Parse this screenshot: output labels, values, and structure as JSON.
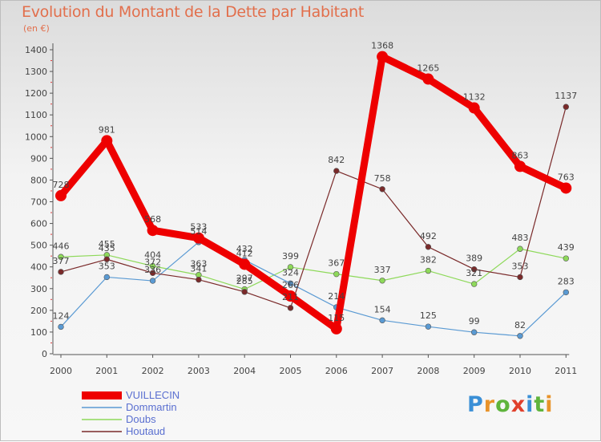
{
  "header": {
    "title": "Evolution du Montant de la Dette par Habitant",
    "subtitle": "(en €)"
  },
  "brand": {
    "letters": [
      {
        "ch": "P",
        "color": "#3a8fd6"
      },
      {
        "ch": "r",
        "color": "#e8932a"
      },
      {
        "ch": "o",
        "color": "#5fb43c"
      },
      {
        "ch": "x",
        "color": "#e0402c"
      },
      {
        "ch": "i",
        "color": "#3a8fd6"
      },
      {
        "ch": "t",
        "color": "#5fb43c"
      },
      {
        "ch": "i",
        "color": "#e8932a"
      }
    ]
  },
  "chart_data": {
    "type": "line",
    "x": [
      "2000",
      "2001",
      "2002",
      "2003",
      "2004",
      "2005",
      "2006",
      "2007",
      "2008",
      "2009",
      "2010",
      "2011"
    ],
    "ylim": [
      0,
      1400
    ],
    "yticks": [
      0,
      100,
      200,
      300,
      400,
      500,
      600,
      700,
      800,
      900,
      1000,
      1100,
      1200,
      1300,
      1400
    ],
    "grid": false,
    "legend_position": "bottom-left",
    "series": [
      {
        "name": "Doubs",
        "color": "#8ed95a",
        "width": 1.2,
        "values": [
          446,
          455,
          404,
          363,
          297,
          399,
          367,
          337,
          382,
          321,
          483,
          439
        ],
        "labels": [
          "446",
          "455",
          "404",
          "363",
          "297",
          "399",
          "367",
          "337",
          "382",
          "321",
          "483",
          "439"
        ]
      },
      {
        "name": "Dommartin",
        "color": "#5a9ad3",
        "width": 1.2,
        "values": [
          124,
          353,
          336,
          514,
          432,
          324,
          214,
          154,
          125,
          99,
          82,
          283
        ],
        "labels": [
          "124",
          "353",
          "336",
          "514",
          "432",
          "324",
          "214",
          "154",
          "125",
          "99",
          "82",
          "283"
        ]
      },
      {
        "name": "Houtaud",
        "color": "#7a2a2a",
        "width": 1.2,
        "values": [
          377,
          435,
          372,
          341,
          285,
          211,
          842,
          758,
          492,
          389,
          353,
          1137
        ],
        "labels": [
          "377",
          "435",
          "372",
          "341",
          "285",
          "211",
          "842",
          "758",
          "492",
          "389",
          "353",
          "1137"
        ]
      },
      {
        "name": "VUILLECIN",
        "color": "#ee0000",
        "width": 9,
        "values": [
          728,
          981,
          568,
          533,
          412,
          266,
          115,
          1368,
          1265,
          1132,
          863,
          763
        ],
        "labels": [
          "728",
          "981",
          "568",
          "533",
          "412",
          "266",
          "115",
          "1368",
          "1265",
          "1132",
          "863",
          "763"
        ]
      }
    ],
    "legend": [
      "VUILLECIN",
      "Dommartin",
      "Doubs",
      "Houtaud"
    ]
  }
}
